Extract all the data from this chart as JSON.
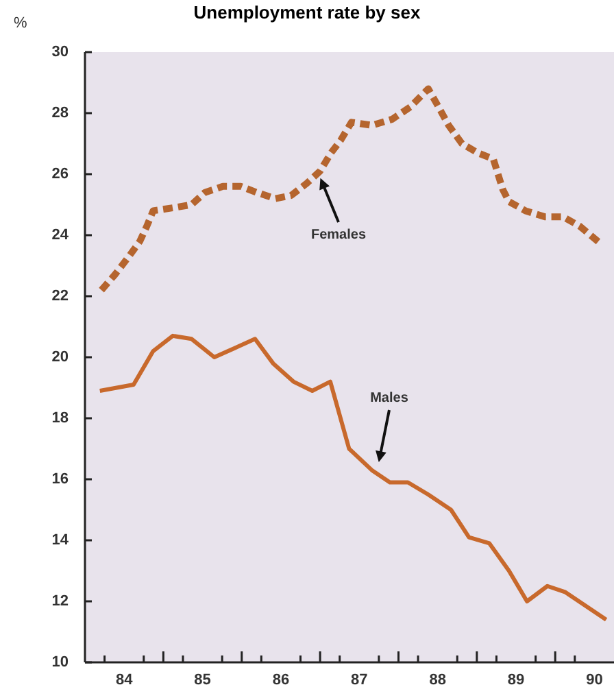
{
  "chart_data": {
    "type": "line",
    "title": "Unemployment rate by sex",
    "ylabel": "%",
    "xlim": [
      83.5,
      90.25
    ],
    "ylim": [
      10,
      30
    ],
    "yticks": [
      10,
      12,
      14,
      16,
      18,
      20,
      22,
      24,
      26,
      28,
      30
    ],
    "xticks": [
      {
        "value": 83.75,
        "label": null
      },
      84,
      {
        "value": 84.25,
        "label": null
      },
      {
        "value": 84.5,
        "label": null
      },
      {
        "value": 84.75,
        "label": null
      },
      85,
      {
        "value": 85.25,
        "label": null
      },
      {
        "value": 85.5,
        "label": null
      },
      {
        "value": 85.75,
        "label": null
      },
      86,
      {
        "value": 86.25,
        "label": null
      },
      {
        "value": 86.5,
        "label": null
      },
      {
        "value": 86.75,
        "label": null
      },
      87,
      {
        "value": 87.25,
        "label": null
      },
      {
        "value": 87.5,
        "label": null
      },
      {
        "value": 87.75,
        "label": null
      },
      88,
      {
        "value": 88.25,
        "label": null
      },
      {
        "value": 88.5,
        "label": null
      },
      {
        "value": 88.75,
        "label": null
      },
      89,
      {
        "value": 89.25,
        "label": null
      },
      {
        "value": 89.5,
        "label": null
      },
      {
        "value": 89.75,
        "label": null
      },
      90
    ],
    "grid": false,
    "marker": "none",
    "series": [
      {
        "color": "#b5652e",
        "line_style": "dashed",
        "x": [
          83.71,
          83.88,
          84.06,
          84.2,
          84.29,
          84.37,
          84.63,
          84.86,
          85.03,
          85.26,
          85.49,
          85.69,
          85.93,
          86.13,
          86.33,
          86.5,
          86.64,
          86.76,
          86.9,
          87.16,
          87.42,
          87.65,
          87.88,
          87.99,
          88.14,
          88.31,
          88.51,
          88.71,
          88.83,
          88.91,
          89.12,
          89.37,
          89.6,
          89.81,
          90.09
        ],
        "values": [
          22.2,
          22.7,
          23.3,
          23.8,
          24.3,
          24.8,
          24.9,
          25.0,
          25.4,
          25.6,
          25.6,
          25.4,
          25.2,
          25.3,
          25.7,
          26.1,
          26.7,
          27.1,
          27.7,
          27.6,
          27.8,
          28.2,
          28.8,
          28.3,
          27.6,
          27.0,
          26.7,
          26.5,
          25.5,
          25.1,
          24.8,
          24.6,
          24.6,
          24.3,
          23.7
        ]
      },
      {
        "color": "#c8692c",
        "line_style": "solid",
        "x": [
          83.69,
          84.12,
          84.37,
          84.62,
          84.86,
          85.15,
          85.41,
          85.67,
          85.9,
          86.16,
          86.4,
          86.63,
          86.87,
          87.16,
          87.39,
          87.62,
          87.88,
          88.17,
          88.4,
          88.66,
          88.91,
          89.14,
          89.4,
          89.63,
          90.15
        ],
        "values": [
          18.9,
          19.1,
          20.2,
          20.7,
          20.6,
          20.0,
          20.3,
          20.6,
          19.8,
          19.2,
          18.9,
          19.2,
          17.0,
          16.3,
          15.9,
          15.9,
          15.5,
          15.0,
          14.1,
          13.9,
          13.0,
          12.0,
          12.5,
          12.3,
          11.4
        ]
      }
    ],
    "annotations": [
      "Females",
      "Males"
    ]
  }
}
